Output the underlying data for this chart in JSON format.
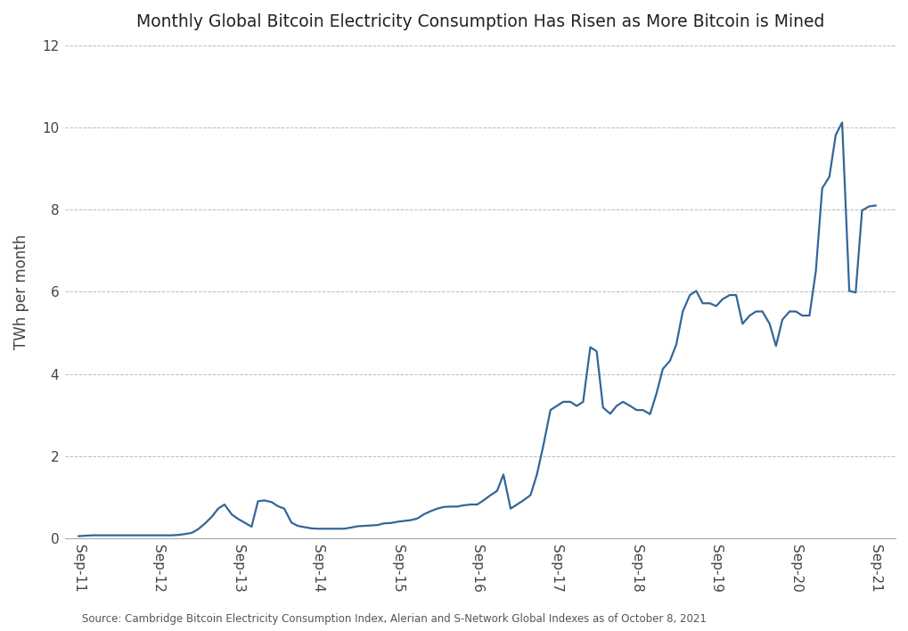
{
  "title": "Monthly Global Bitcoin Electricity Consumption Has Risen as More Bitcoin is Mined",
  "ylabel": "TWh per month",
  "source_text": "Source: Cambridge Bitcoin Electricity Consumption Index, Alerian and S-Network Global Indexes as of October 8, 2021",
  "line_color": "#336699",
  "background_color": "#ffffff",
  "grid_color": "#bbbbbb",
  "ylim": [
    0,
    12
  ],
  "yticks": [
    0,
    2,
    4,
    6,
    8,
    10,
    12
  ],
  "xtick_labels": [
    "Sep-11",
    "Sep-12",
    "Sep-13",
    "Sep-14",
    "Sep-15",
    "Sep-16",
    "Sep-17",
    "Sep-18",
    "Sep-19",
    "Sep-20",
    "Sep-21"
  ],
  "xtick_positions": [
    2011.75,
    2012.75,
    2013.75,
    2014.75,
    2015.75,
    2016.75,
    2017.75,
    2018.75,
    2019.75,
    2020.75,
    2021.75
  ],
  "xlim": [
    2011.58,
    2022.0
  ],
  "dates_numeric": [
    2011.75,
    2011.83,
    2011.92,
    2012.0,
    2012.08,
    2012.17,
    2012.25,
    2012.33,
    2012.42,
    2012.5,
    2012.58,
    2012.67,
    2012.75,
    2012.83,
    2012.92,
    2013.0,
    2013.08,
    2013.17,
    2013.25,
    2013.33,
    2013.42,
    2013.5,
    2013.58,
    2013.67,
    2013.75,
    2013.83,
    2013.92,
    2014.0,
    2014.08,
    2014.17,
    2014.25,
    2014.33,
    2014.42,
    2014.5,
    2014.58,
    2014.67,
    2014.75,
    2014.83,
    2014.92,
    2015.0,
    2015.08,
    2015.17,
    2015.25,
    2015.33,
    2015.42,
    2015.5,
    2015.58,
    2015.67,
    2015.75,
    2015.83,
    2015.92,
    2016.0,
    2016.08,
    2016.17,
    2016.25,
    2016.33,
    2016.42,
    2016.5,
    2016.58,
    2016.67,
    2016.75,
    2016.83,
    2016.92,
    2017.0,
    2017.08,
    2017.17,
    2017.25,
    2017.33,
    2017.42,
    2017.5,
    2017.58,
    2017.67,
    2017.75,
    2017.83,
    2017.92,
    2018.0,
    2018.08,
    2018.17,
    2018.25,
    2018.33,
    2018.42,
    2018.5,
    2018.58,
    2018.67,
    2018.75,
    2018.83,
    2018.92,
    2019.0,
    2019.08,
    2019.17,
    2019.25,
    2019.33,
    2019.42,
    2019.5,
    2019.58,
    2019.67,
    2019.75,
    2019.83,
    2019.92,
    2020.0,
    2020.08,
    2020.17,
    2020.25,
    2020.33,
    2020.42,
    2020.5,
    2020.58,
    2020.67,
    2020.75,
    2020.83,
    2020.92,
    2021.0,
    2021.08,
    2021.17,
    2021.25,
    2021.33,
    2021.42,
    2021.5,
    2021.58,
    2021.67,
    2021.75
  ],
  "values": [
    0.05,
    0.06,
    0.07,
    0.07,
    0.07,
    0.07,
    0.07,
    0.07,
    0.07,
    0.07,
    0.07,
    0.07,
    0.07,
    0.07,
    0.07,
    0.08,
    0.1,
    0.13,
    0.22,
    0.35,
    0.52,
    0.72,
    0.82,
    0.58,
    0.47,
    0.38,
    0.28,
    0.9,
    0.92,
    0.88,
    0.78,
    0.72,
    0.38,
    0.3,
    0.27,
    0.24,
    0.23,
    0.23,
    0.23,
    0.23,
    0.23,
    0.26,
    0.29,
    0.3,
    0.31,
    0.32,
    0.36,
    0.37,
    0.4,
    0.42,
    0.44,
    0.48,
    0.58,
    0.66,
    0.72,
    0.76,
    0.77,
    0.77,
    0.8,
    0.82,
    0.82,
    0.92,
    1.05,
    1.15,
    1.55,
    0.72,
    0.82,
    0.92,
    1.05,
    1.55,
    2.25,
    3.12,
    3.22,
    3.32,
    3.32,
    3.22,
    3.32,
    4.65,
    4.55,
    3.18,
    3.03,
    3.22,
    3.32,
    3.22,
    3.12,
    3.12,
    3.02,
    3.52,
    4.12,
    4.32,
    4.72,
    5.52,
    5.92,
    6.02,
    5.72,
    5.72,
    5.65,
    5.82,
    5.92,
    5.92,
    5.22,
    5.42,
    5.52,
    5.52,
    5.22,
    4.68,
    5.32,
    5.52,
    5.52,
    5.42,
    5.42,
    6.5,
    8.52,
    8.8,
    9.82,
    10.12,
    6.02,
    5.98,
    7.98,
    8.08,
    8.1
  ]
}
